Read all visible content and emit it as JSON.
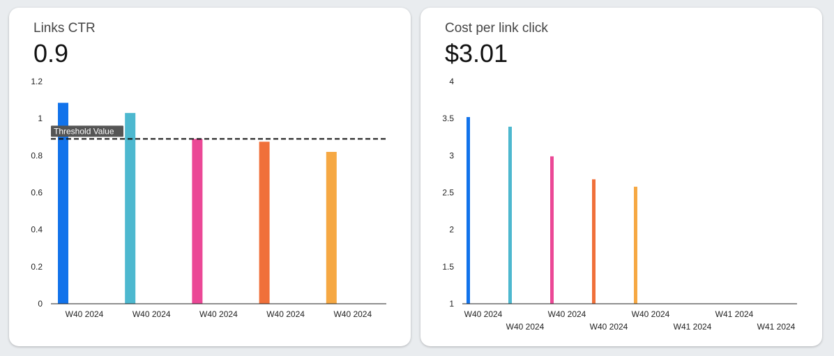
{
  "cards": [
    {
      "title": "Links CTR",
      "value": "0.9"
    },
    {
      "title": "Cost per link click",
      "value": "$3.01"
    }
  ],
  "colors": [
    "#1273eb",
    "#4db8cf",
    "#eb4896",
    "#f0703a",
    "#f6a843"
  ],
  "chart_data": [
    {
      "type": "bar",
      "categories": [
        "W40 2024",
        "W40 2024",
        "W40 2024",
        "W40 2024",
        "W40 2024"
      ],
      "values": [
        1.085,
        1.03,
        0.89,
        0.875,
        0.82
      ],
      "ylim": [
        0,
        1.2
      ],
      "yticks": [
        "0",
        "0.2",
        "0.4",
        "0.6",
        "0.8",
        "1",
        "1.2"
      ],
      "threshold": {
        "label": "Threshold Value",
        "value": 0.89
      }
    },
    {
      "type": "bar",
      "categories": [
        "W40 2024",
        "W40 2024",
        "W40 2024",
        "W40 2024",
        "W40 2024",
        "W41 2024",
        "W41 2024",
        "W41 2024"
      ],
      "values": [
        3.52,
        3.39,
        2.99,
        2.68,
        2.58,
        null,
        null,
        null
      ],
      "ylim": [
        1,
        4
      ],
      "yticks": [
        "1",
        "1.5",
        "2",
        "2.5",
        "3",
        "3.5",
        "4"
      ]
    }
  ]
}
